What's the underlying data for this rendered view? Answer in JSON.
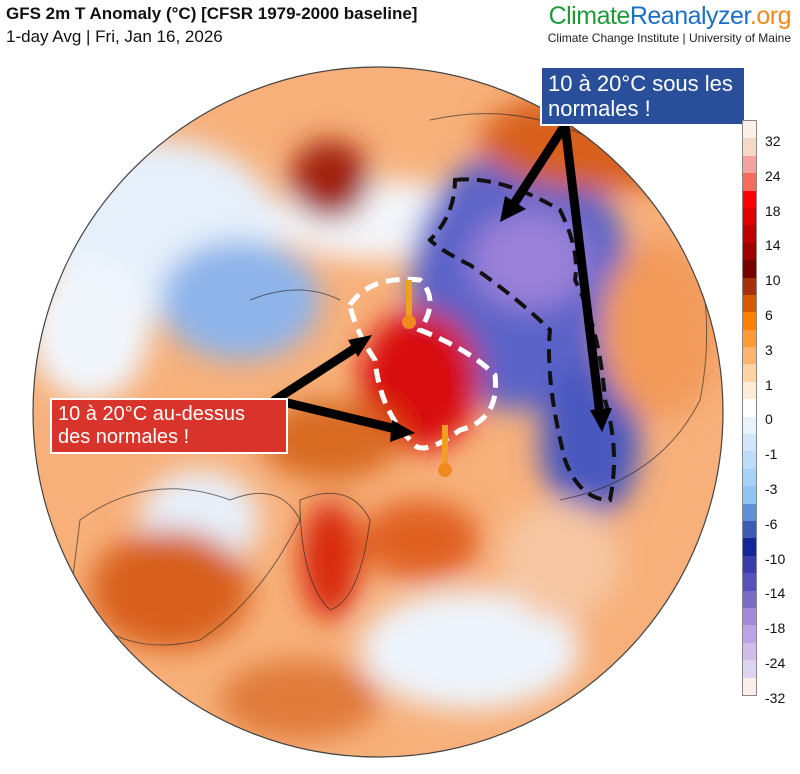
{
  "header": {
    "title": "GFS 2m T Anomaly (°C) [CFSR 1979-2000 baseline]",
    "subtitle": "1-day Avg | Fri, Jan 16, 2026",
    "brand": {
      "part1": "Climate",
      "part2": "Reanalyzer",
      "part3": ".org",
      "colors": [
        "#1e9a3a",
        "#1b6fc4",
        "#f08a1c"
      ]
    },
    "institution": "Climate Change Institute | University of Maine"
  },
  "annotations": {
    "cold": "10 à 20°C sous les normales !",
    "warm": "10 à 20°C au-dessus des normales !",
    "cold_color": "#2a4f9a",
    "warm_color": "#d9342b"
  },
  "legend": {
    "ticks": [
      "32",
      "24",
      "18",
      "14",
      "10",
      "6",
      "3",
      "1",
      "0",
      "-1",
      "-3",
      "-6",
      "-10",
      "-14",
      "-18",
      "-24",
      "-32"
    ],
    "colors": [
      "#fbf0ea",
      "#f3d9c6",
      "#f4a3a0",
      "#f56b60",
      "#fe0000",
      "#e00000",
      "#c00000",
      "#a00000",
      "#780000",
      "#a8300a",
      "#d85a00",
      "#fe8000",
      "#ff9b35",
      "#ffb46c",
      "#ffd3a4",
      "#feebd8",
      "#ffffff",
      "#e8f2fd",
      "#d2e6fb",
      "#bcdcfa",
      "#a6d2f8",
      "#8ec4f6",
      "#6290d8",
      "#3c5cb8",
      "#14249a",
      "#3a3cac",
      "#5a52bc",
      "#7a6cc8",
      "#a488dc",
      "#bca4e4",
      "#d2bcea",
      "#dcd4f0",
      "#fbefee"
    ],
    "unit": "°C"
  }
}
